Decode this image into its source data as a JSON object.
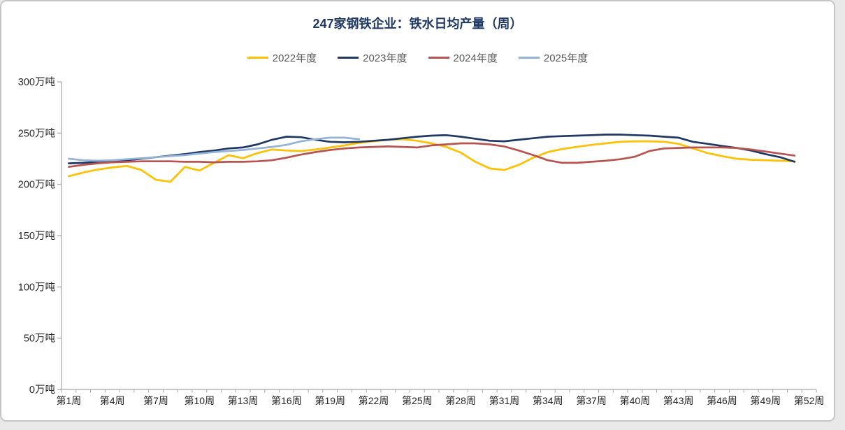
{
  "colors": {
    "title_text": "#1f3864",
    "legend_text": "#595959",
    "axis_text": "#262626",
    "axis_line": "#a6a6a6",
    "card_border": "#c6c6c6",
    "background": "#ffffff"
  },
  "chart_data": {
    "type": "line",
    "title": "247家钢铁企业：铁水日均产量（周）",
    "unit": "万吨",
    "grid": "off",
    "legend_position": "top-center",
    "y_axis": {
      "min": 0,
      "max": 300,
      "tick_values": [
        0,
        50,
        100,
        150,
        200,
        250,
        300
      ],
      "tick_labels": [
        "0万吨",
        "50万吨",
        "100万吨",
        "150万吨",
        "200万吨",
        "250万吨",
        "300万吨"
      ]
    },
    "x_axis": {
      "total_weeks": 52,
      "tick_weeks": [
        1,
        4,
        7,
        10,
        13,
        16,
        19,
        22,
        25,
        28,
        31,
        34,
        37,
        40,
        43,
        46,
        49,
        52
      ],
      "tick_labels": [
        "第1周",
        "第4周",
        "第7周",
        "第10周",
        "第13周",
        "第16周",
        "第19周",
        "第22周",
        "第25周",
        "第28周",
        "第31周",
        "第34周",
        "第37周",
        "第40周",
        "第43周",
        "第46周",
        "第49周",
        "第52周"
      ]
    },
    "series": [
      {
        "name": "2022年度",
        "color": "#FFC000",
        "start_week": 1,
        "values": [
          208,
          211.5,
          214.5,
          216.5,
          218,
          214,
          204.5,
          202.5,
          217,
          213.5,
          221,
          228.5,
          225.5,
          230.5,
          234,
          233,
          232.5,
          234,
          236,
          238,
          240.5,
          242,
          243.5,
          244,
          242.5,
          240,
          236.5,
          231,
          222,
          215.5,
          214,
          219,
          226,
          231.5,
          234.5,
          236.5,
          238.5,
          240,
          241.5,
          242,
          242,
          241.5,
          239.5,
          235,
          230.5,
          227.5,
          225,
          224,
          223.5,
          223,
          222.5
        ]
      },
      {
        "name": "2023年度",
        "color": "#1F3864",
        "start_week": 1,
        "values": [
          220.5,
          221,
          222,
          222.5,
          223.5,
          225,
          226.5,
          228,
          229.5,
          231.5,
          233,
          235,
          236,
          239,
          243.5,
          246.5,
          246,
          243.5,
          241.5,
          241,
          241.5,
          242.5,
          243.5,
          245,
          246.5,
          247.5,
          248,
          246.5,
          244.5,
          242.5,
          242,
          243.5,
          245,
          246.5,
          247,
          247.5,
          248,
          248.5,
          248.5,
          248,
          247.5,
          246.5,
          245.5,
          241.5,
          239.5,
          237.5,
          235.5,
          233,
          229.5,
          226.5,
          222
        ]
      },
      {
        "name": "2024年度",
        "color": "#B85450",
        "start_week": 1,
        "values": [
          217,
          219,
          220.5,
          221.5,
          222,
          222.5,
          222.5,
          222.5,
          222,
          222,
          221.5,
          222,
          222,
          222.5,
          223.5,
          226,
          229,
          231.5,
          233.5,
          235,
          236,
          236.5,
          237,
          236.5,
          236,
          238,
          239,
          240,
          240,
          239,
          237,
          233,
          228.5,
          223.5,
          221,
          221,
          222,
          223,
          224.5,
          227,
          232.5,
          235,
          235.5,
          236,
          236,
          236,
          235.5,
          234,
          232,
          230,
          228
        ]
      },
      {
        "name": "2025年度",
        "color": "#95B3D7",
        "start_week": 1,
        "values": [
          225,
          223.5,
          223,
          223.5,
          224.5,
          225.5,
          226.5,
          227.5,
          228.5,
          230,
          231.5,
          232.5,
          233.5,
          235,
          236.5,
          238.5,
          242,
          244,
          245.5,
          245.5,
          244
        ]
      }
    ]
  }
}
